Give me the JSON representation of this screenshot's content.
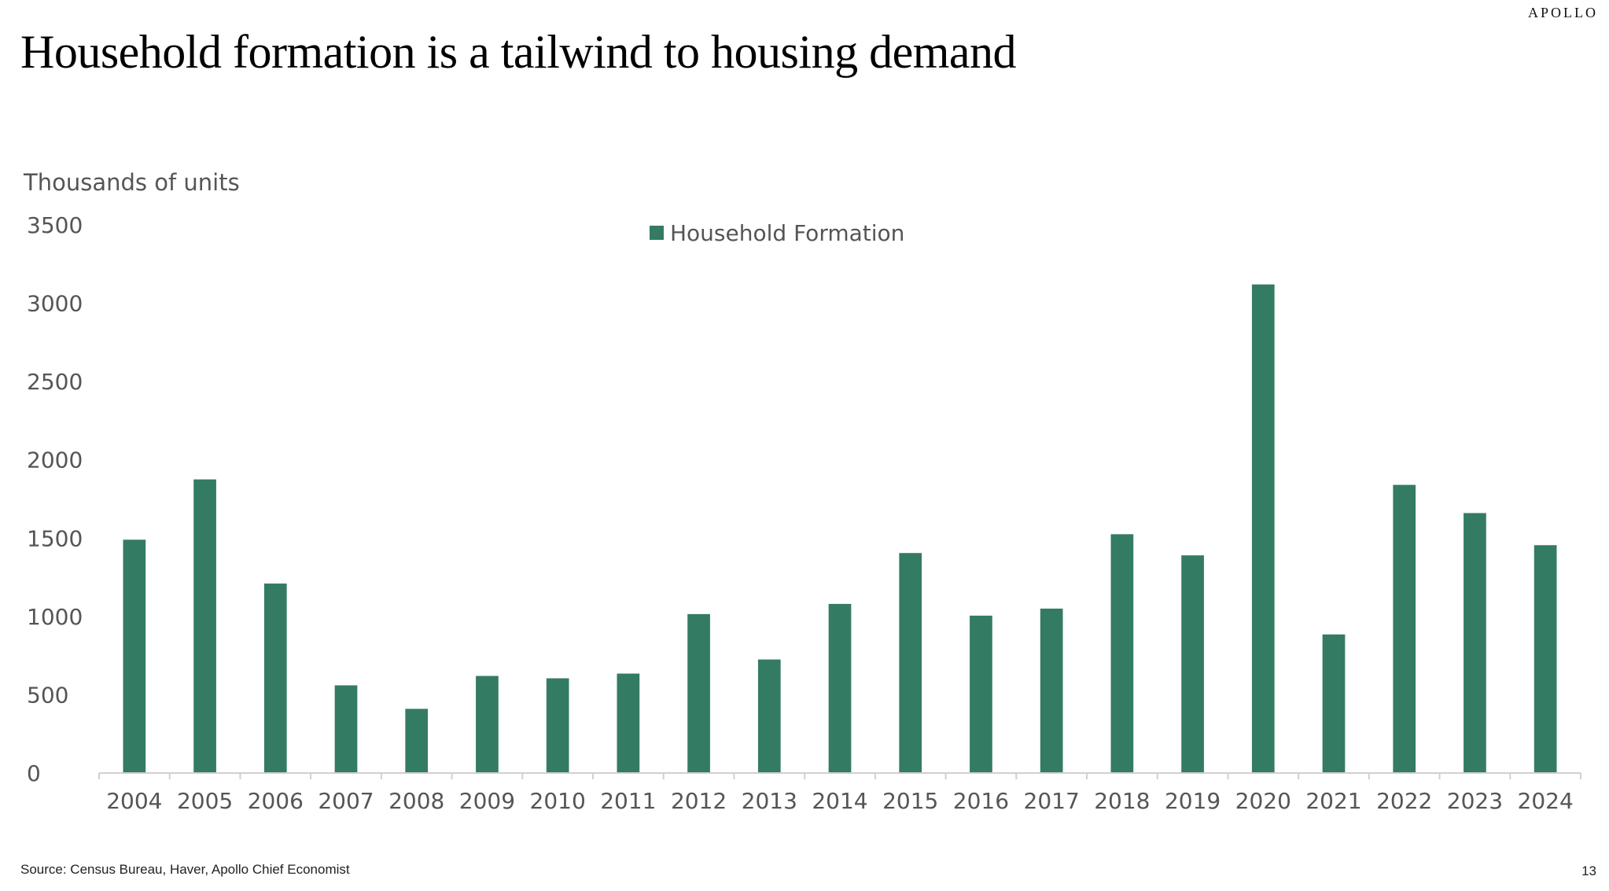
{
  "brand": "APOLLO",
  "title": "Household formation is a tailwind to housing demand",
  "source": "Source: Census Bureau, Haver, Apollo Chief Economist",
  "page_number": "13",
  "colors": {
    "bar": "#347b64",
    "axis": "#d0d0d0",
    "text": "#555555"
  },
  "chart_data": {
    "type": "bar",
    "ylabel": "Thousands of units",
    "ylim": [
      0,
      3500
    ],
    "yticks": [
      0,
      500,
      1000,
      1500,
      2000,
      2500,
      3000,
      3500
    ],
    "grid": false,
    "legend_position": "top-center",
    "categories": [
      "2004",
      "2005",
      "2006",
      "2007",
      "2008",
      "2009",
      "2010",
      "2011",
      "2012",
      "2013",
      "2014",
      "2015",
      "2016",
      "2017",
      "2018",
      "2019",
      "2020",
      "2021",
      "2022",
      "2023",
      "2024"
    ],
    "series": [
      {
        "name": "Household Formation",
        "values": [
          1490,
          1875,
          1210,
          560,
          410,
          620,
          605,
          635,
          1015,
          725,
          1080,
          1405,
          1005,
          1050,
          1525,
          1390,
          3120,
          885,
          1840,
          1660,
          1455
        ]
      }
    ]
  }
}
